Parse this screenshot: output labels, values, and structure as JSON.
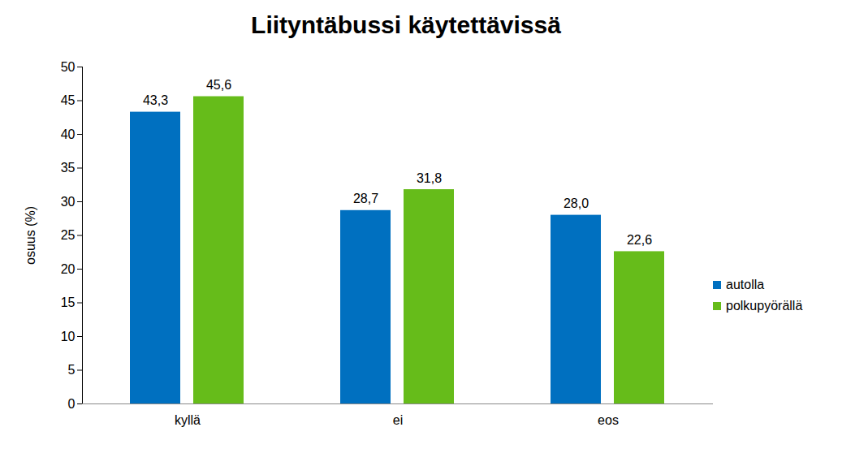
{
  "chart_data": {
    "type": "bar",
    "title": "Liityntäbussi käytettävissä",
    "ylabel": "osuus (%)",
    "categories": [
      "kyllä",
      "ei",
      "eos"
    ],
    "series": [
      {
        "name": "autolla",
        "color": "#0070C0",
        "values": [
          43.3,
          28.7,
          28.0
        ],
        "value_labels": [
          "43,3",
          "28,7",
          "28,0"
        ]
      },
      {
        "name": "polkupyörällä",
        "color": "#66BC1A",
        "values": [
          45.6,
          31.8,
          22.6
        ],
        "value_labels": [
          "45,6",
          "31,8",
          "22,6"
        ]
      }
    ],
    "ylim": [
      0,
      50
    ],
    "yticks": [
      0,
      5,
      10,
      15,
      20,
      25,
      30,
      35,
      40,
      45,
      50
    ],
    "grid": false,
    "legend": "right",
    "data_labels": true
  }
}
